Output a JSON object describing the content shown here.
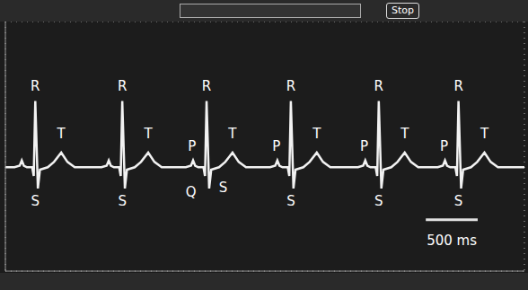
{
  "chart_data": {
    "type": "line",
    "status_text": "Stop",
    "color": "#f2f2f2",
    "grid": true,
    "tick_labels": false,
    "xlim": [
      0,
      5000
    ],
    "xticks": [
      0,
      500,
      1000,
      1500,
      2000,
      2500,
      3000,
      3500,
      4000,
      4500,
      5000
    ],
    "ylim": [
      -4,
      4
    ],
    "yticks": [
      -4,
      -3,
      -2,
      -1,
      0,
      1,
      2,
      3,
      4
    ],
    "x": [
      0,
      88,
      138,
      158,
      178,
      208,
      258,
      273,
      288,
      313,
      333,
      408,
      468,
      538,
      598,
      668,
      926,
      976,
      996,
      1016,
      1046,
      1096,
      1111,
      1126,
      1151,
      1171,
      1246,
      1306,
      1376,
      1436,
      1506,
      1738,
      1788,
      1808,
      1828,
      1858,
      1908,
      1923,
      1938,
      1963,
      1983,
      2058,
      2118,
      2188,
      2248,
      2318,
      2550,
      2600,
      2620,
      2640,
      2670,
      2720,
      2735,
      2750,
      2775,
      2795,
      2870,
      2930,
      3000,
      3060,
      3130,
      3397,
      3447,
      3467,
      3487,
      3517,
      3567,
      3582,
      3597,
      3622,
      3642,
      3717,
      3777,
      3847,
      3907,
      3977,
      4165,
      4215,
      4235,
      4255,
      4285,
      4335,
      4350,
      4365,
      4390,
      4410,
      4485,
      4545,
      4615,
      4675,
      4745,
      5000
    ],
    "values": [
      -0.67,
      -0.67,
      -0.62,
      -0.45,
      -0.62,
      -0.67,
      -0.67,
      -0.95,
      1.45,
      -1.35,
      -0.75,
      -0.67,
      -0.5,
      -0.2,
      -0.5,
      -0.67,
      -0.67,
      -0.62,
      -0.45,
      -0.62,
      -0.67,
      -0.67,
      -0.95,
      1.45,
      -1.35,
      -0.75,
      -0.67,
      -0.5,
      -0.2,
      -0.5,
      -0.67,
      -0.67,
      -0.62,
      -0.45,
      -0.62,
      -0.67,
      -0.67,
      -0.95,
      1.45,
      -1.35,
      -0.75,
      -0.67,
      -0.5,
      -0.2,
      -0.5,
      -0.67,
      -0.67,
      -0.62,
      -0.45,
      -0.62,
      -0.67,
      -0.67,
      -0.95,
      1.45,
      -1.35,
      -0.75,
      -0.67,
      -0.5,
      -0.2,
      -0.5,
      -0.67,
      -0.67,
      -0.62,
      -0.45,
      -0.62,
      -0.67,
      -0.67,
      -0.95,
      1.45,
      -1.35,
      -0.75,
      -0.67,
      -0.5,
      -0.2,
      -0.5,
      -0.67,
      -0.67,
      -0.62,
      -0.45,
      -0.62,
      -0.67,
      -0.67,
      -0.95,
      1.45,
      -1.35,
      -0.75,
      -0.67,
      -0.5,
      -0.2,
      -0.5,
      -0.67,
      -0.67
    ],
    "annotations": [
      {
        "text": "R",
        "x": 288,
        "y": 1.95
      },
      {
        "text": "T",
        "x": 538,
        "y": 0.4
      },
      {
        "text": "S",
        "x": 288,
        "y": -1.75
      },
      {
        "text": "R",
        "x": 1126,
        "y": 1.95
      },
      {
        "text": "T",
        "x": 1376,
        "y": 0.4
      },
      {
        "text": "S",
        "x": 1126,
        "y": -1.75
      },
      {
        "text": "R",
        "x": 1938,
        "y": 1.95
      },
      {
        "text": "P",
        "x": 1798,
        "y": 0.0
      },
      {
        "text": "T",
        "x": 2188,
        "y": 0.4
      },
      {
        "text": "Q",
        "x": 1788,
        "y": -1.45
      },
      {
        "text": "S",
        "x": 2098,
        "y": -1.3
      },
      {
        "text": "R",
        "x": 2750,
        "y": 1.95
      },
      {
        "text": "P",
        "x": 2610,
        "y": 0.0
      },
      {
        "text": "T",
        "x": 3000,
        "y": 0.4
      },
      {
        "text": "S",
        "x": 2750,
        "y": -1.75
      },
      {
        "text": "R",
        "x": 3597,
        "y": 1.95
      },
      {
        "text": "P",
        "x": 3457,
        "y": 0.0
      },
      {
        "text": "T",
        "x": 3847,
        "y": 0.4
      },
      {
        "text": "S",
        "x": 3597,
        "y": -1.75
      },
      {
        "text": "R",
        "x": 4365,
        "y": 1.95
      },
      {
        "text": "P",
        "x": 4225,
        "y": 0.0
      },
      {
        "text": "T",
        "x": 4615,
        "y": 0.4
      },
      {
        "text": "S",
        "x": 4365,
        "y": -1.75
      }
    ],
    "scale_bar": {
      "value": 500,
      "label": "500 ms"
    }
  }
}
